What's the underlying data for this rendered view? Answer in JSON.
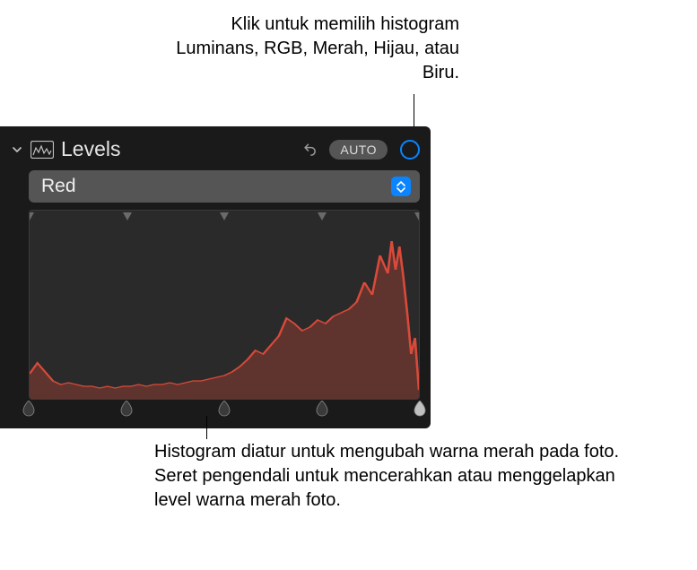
{
  "callouts": {
    "top": "Klik untuk memilih histogram Luminans, RGB, Merah, Hijau, atau Biru.",
    "bottom": "Histogram diatur untuk mengubah warna merah pada foto. Seret pengendali untuk mencerahkan atau menggelapkan level warna merah foto."
  },
  "panel": {
    "title": "Levels",
    "auto_label": "AUTO",
    "channel_selected": "Red",
    "background": "#1a1a1a",
    "accent": "#0a84ff"
  },
  "histogram": {
    "type": "area",
    "stroke_color": "#d94a3a",
    "fill_color": "rgba(140,60,50,0.55)",
    "background": "#2a2a2a",
    "xlim": [
      0,
      100
    ],
    "ylim": [
      0,
      100
    ],
    "points": [
      [
        0,
        14
      ],
      [
        2,
        20
      ],
      [
        4,
        15
      ],
      [
        6,
        10
      ],
      [
        8,
        8
      ],
      [
        10,
        9
      ],
      [
        12,
        8
      ],
      [
        14,
        7
      ],
      [
        16,
        7
      ],
      [
        18,
        6
      ],
      [
        20,
        7
      ],
      [
        22,
        6
      ],
      [
        24,
        7
      ],
      [
        26,
        7
      ],
      [
        28,
        8
      ],
      [
        30,
        7
      ],
      [
        32,
        8
      ],
      [
        34,
        8
      ],
      [
        36,
        9
      ],
      [
        38,
        8
      ],
      [
        40,
        9
      ],
      [
        42,
        10
      ],
      [
        44,
        10
      ],
      [
        46,
        11
      ],
      [
        48,
        12
      ],
      [
        50,
        13
      ],
      [
        52,
        15
      ],
      [
        54,
        18
      ],
      [
        56,
        22
      ],
      [
        58,
        27
      ],
      [
        60,
        25
      ],
      [
        62,
        30
      ],
      [
        64,
        35
      ],
      [
        66,
        45
      ],
      [
        68,
        42
      ],
      [
        70,
        38
      ],
      [
        72,
        40
      ],
      [
        74,
        44
      ],
      [
        76,
        42
      ],
      [
        78,
        46
      ],
      [
        80,
        48
      ],
      [
        82,
        50
      ],
      [
        84,
        54
      ],
      [
        86,
        65
      ],
      [
        88,
        58
      ],
      [
        90,
        80
      ],
      [
        92,
        70
      ],
      [
        93,
        88
      ],
      [
        94,
        72
      ],
      [
        95,
        85
      ],
      [
        96,
        68
      ],
      [
        97,
        48
      ],
      [
        98,
        25
      ],
      [
        99,
        34
      ],
      [
        100,
        5
      ]
    ],
    "top_markers_pct": [
      0,
      25,
      50,
      75,
      100
    ],
    "bottom_handles_pct": [
      0,
      25,
      50,
      75,
      100
    ]
  }
}
